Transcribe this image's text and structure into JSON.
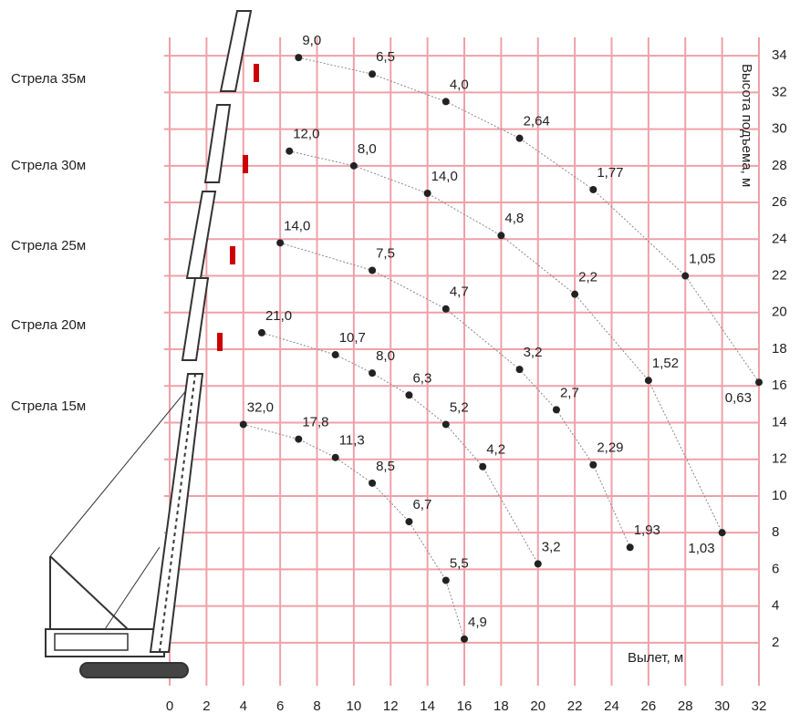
{
  "chart_data": {
    "type": "line",
    "x_label": "Вылет, м",
    "y_label": "Высота подъема, м",
    "xlim": [
      0,
      32
    ],
    "ylim": [
      1,
      35
    ],
    "xticks": [
      0,
      2,
      4,
      6,
      8,
      10,
      12,
      14,
      16,
      18,
      20,
      22,
      24,
      26,
      28,
      30,
      32
    ],
    "yticks": [
      2,
      4,
      6,
      8,
      10,
      12,
      14,
      16,
      18,
      20,
      22,
      24,
      26,
      28,
      30,
      32,
      34
    ],
    "grid": true,
    "grid_color": "#f0a0a8",
    "series": [
      {
        "name": "Стрела 35м",
        "color": "#222222",
        "x": [
          7,
          11,
          15,
          19,
          23,
          28,
          32
        ],
        "values": [
          33.9,
          33.0,
          31.5,
          29.5,
          26.7,
          22.0,
          16.2
        ],
        "loads": [
          9.0,
          6.5,
          4.0,
          2.64,
          1.77,
          1.05,
          0.63
        ],
        "value_labels": [
          "9,0",
          "6,5",
          "4,0",
          "2,64",
          "1,77",
          "1,05",
          "0,63"
        ]
      },
      {
        "name": "Стрела 30м",
        "color": "#222222",
        "x": [
          6.5,
          10,
          14,
          18,
          22,
          26,
          30
        ],
        "values": [
          28.8,
          28.0,
          26.5,
          24.2,
          21.0,
          16.3,
          8.0
        ],
        "loads": [
          12.0,
          8.0,
          14.0,
          4.8,
          2.2,
          1.52,
          1.03
        ],
        "value_labels": [
          "12,0",
          "8,0",
          "14,0",
          "4,8",
          "2,2",
          "1,52",
          "1,03"
        ]
      },
      {
        "name": "Стрела 25м",
        "color": "#222222",
        "x": [
          6,
          11,
          15,
          19,
          21,
          23,
          25
        ],
        "values": [
          23.8,
          22.3,
          20.2,
          16.9,
          14.7,
          11.7,
          7.2
        ],
        "loads": [
          14.0,
          7.5,
          4.7,
          3.2,
          2.7,
          2.29,
          1.93
        ],
        "value_labels": [
          "14,0",
          "7,5",
          "4,7",
          "3,2",
          "2,7",
          "2,29",
          "1,93"
        ]
      },
      {
        "name": "Стрела 20м",
        "color": "#222222",
        "x": [
          5,
          9,
          11,
          13,
          15,
          17,
          20
        ],
        "values": [
          18.9,
          17.7,
          16.7,
          15.5,
          13.9,
          11.6,
          6.3
        ],
        "loads": [
          21.0,
          10.7,
          8.0,
          6.3,
          5.2,
          4.2,
          3.2
        ],
        "value_labels": [
          "21,0",
          "10,7",
          "8,0",
          "6,3",
          "5,2",
          "4,2",
          "3,2"
        ]
      },
      {
        "name": "Стрела 15м",
        "color": "#222222",
        "x": [
          4,
          7,
          9,
          11,
          13,
          15,
          16
        ],
        "values": [
          13.9,
          13.1,
          12.1,
          10.7,
          8.6,
          5.4,
          2.2
        ],
        "loads": [
          32.0,
          17.8,
          11.3,
          8.5,
          6.7,
          5.5,
          4.9
        ],
        "value_labels": [
          "32,0",
          "17,8",
          "11,3",
          "8,5",
          "6,7",
          "5,5",
          "4,9"
        ]
      }
    ]
  }
}
